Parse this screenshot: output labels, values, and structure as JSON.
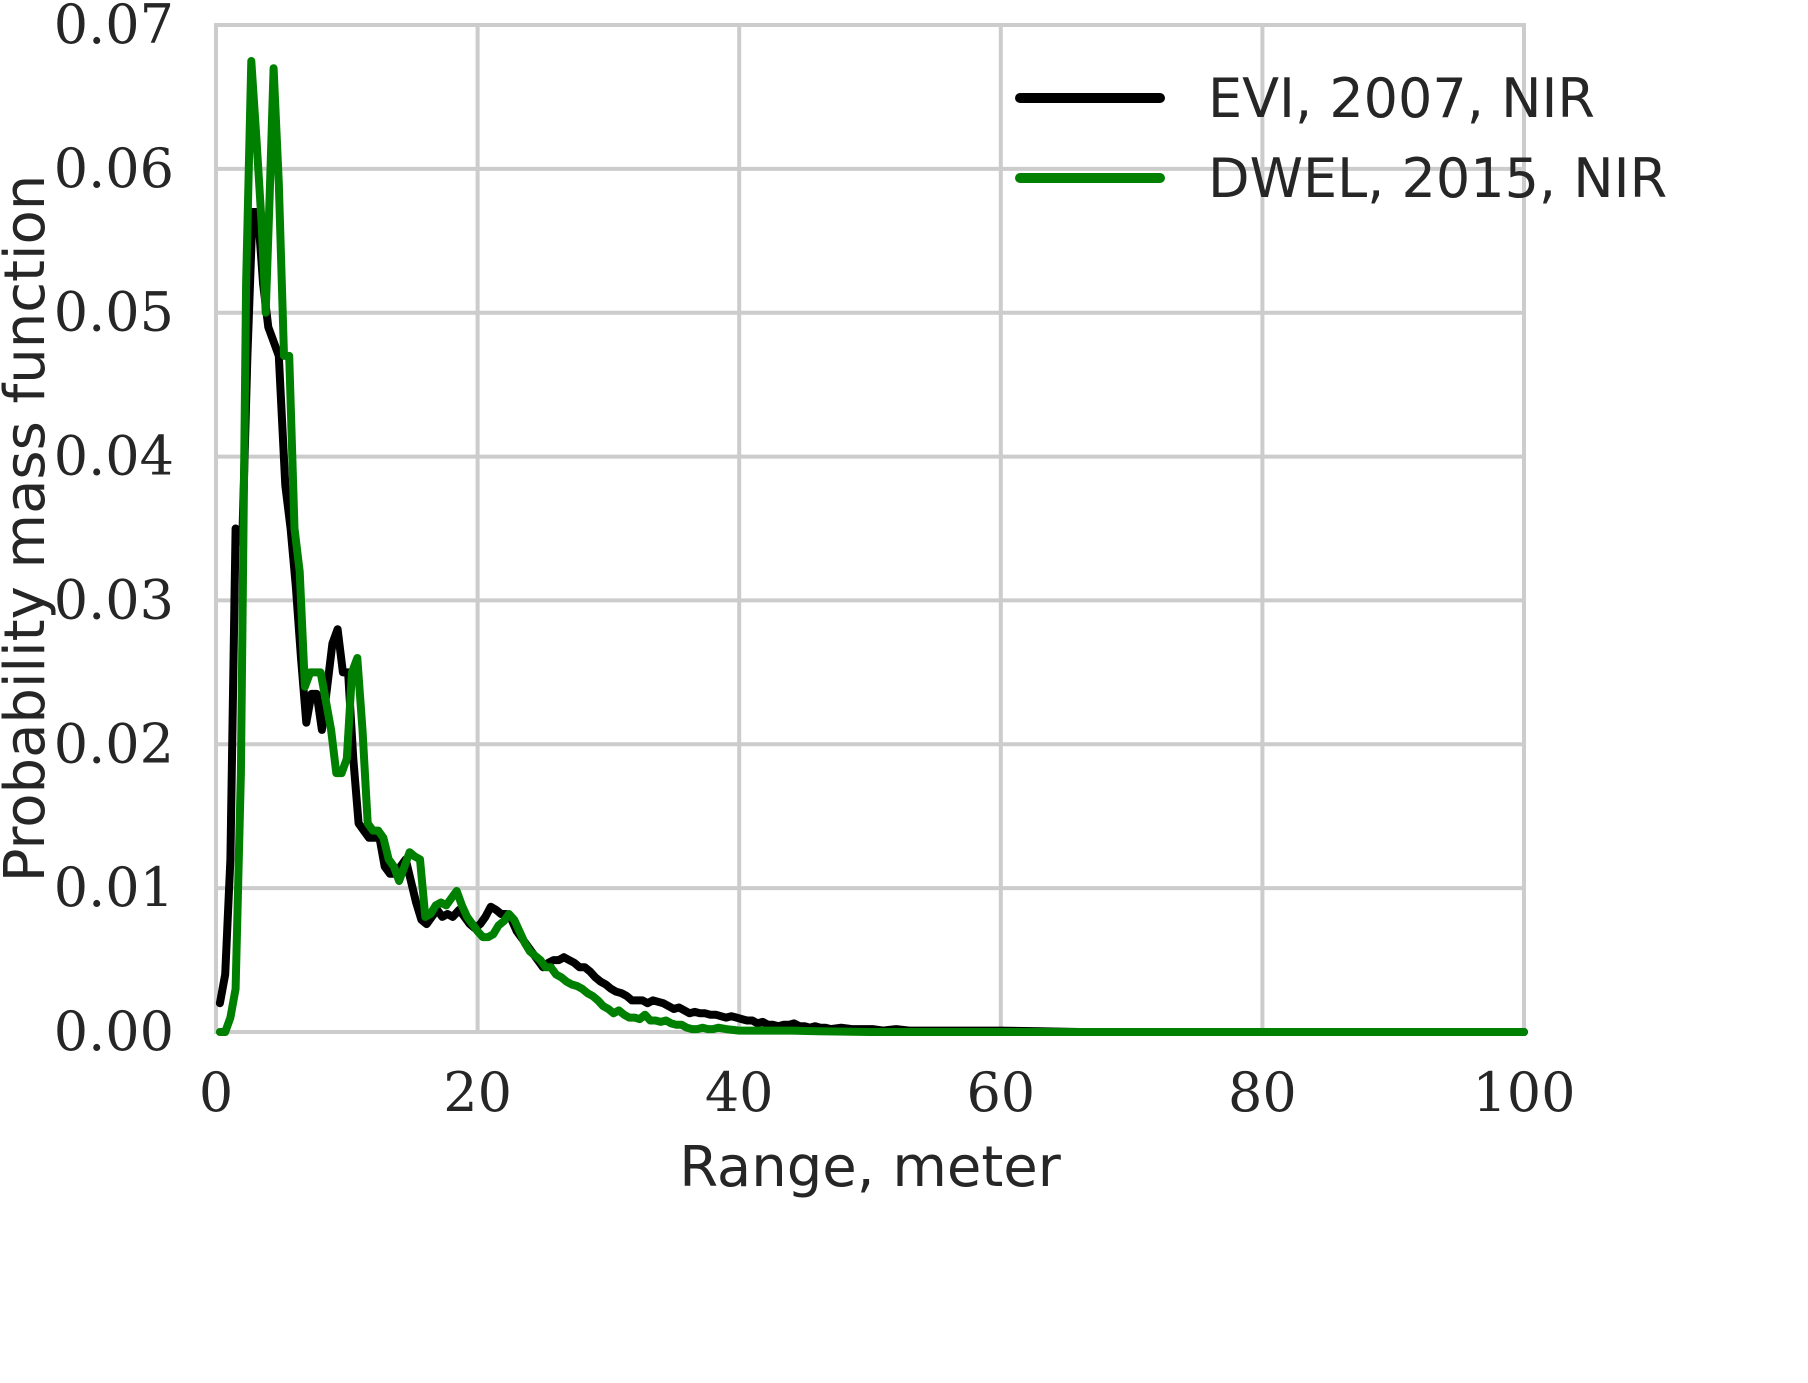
{
  "chart_data": {
    "type": "line",
    "title": "",
    "xlabel": "Range, meter",
    "ylabel": "Probability mass function",
    "xlim": [
      0,
      100
    ],
    "ylim": [
      0,
      0.07
    ],
    "x_ticks": [
      0,
      20,
      40,
      60,
      80,
      100
    ],
    "x_tick_labels": [
      "0",
      "20",
      "40",
      "60",
      "80",
      "100"
    ],
    "y_ticks": [
      0,
      0.01,
      0.02,
      0.03,
      0.04,
      0.05,
      0.06,
      0.07
    ],
    "y_tick_labels": [
      "0.00",
      "0.01",
      "0.02",
      "0.03",
      "0.04",
      "0.05",
      "0.06",
      "0.07"
    ],
    "grid": true,
    "legend_position": "top-right",
    "series": [
      {
        "name": "EVI, 2007, NIR",
        "color": "#000000",
        "points": [
          [
            0.3,
            0.002
          ],
          [
            0.7,
            0.004
          ],
          [
            1.1,
            0.012
          ],
          [
            1.5,
            0.035
          ],
          [
            2.0,
            0.034
          ],
          [
            2.4,
            0.047
          ],
          [
            2.8,
            0.057
          ],
          [
            3.2,
            0.057
          ],
          [
            3.6,
            0.052
          ],
          [
            4.0,
            0.049
          ],
          [
            4.4,
            0.048
          ],
          [
            4.8,
            0.047
          ],
          [
            5.3,
            0.038
          ],
          [
            5.7,
            0.035
          ],
          [
            6.1,
            0.031
          ],
          [
            6.5,
            0.026
          ],
          [
            6.9,
            0.0215
          ],
          [
            7.3,
            0.0235
          ],
          [
            7.7,
            0.0235
          ],
          [
            8.1,
            0.021
          ],
          [
            8.5,
            0.024
          ],
          [
            8.9,
            0.027
          ],
          [
            9.3,
            0.028
          ],
          [
            9.7,
            0.025
          ],
          [
            10.1,
            0.025
          ],
          [
            10.5,
            0.019
          ],
          [
            10.9,
            0.0145
          ],
          [
            11.3,
            0.014
          ],
          [
            11.7,
            0.0135
          ],
          [
            12.1,
            0.0135
          ],
          [
            12.5,
            0.0135
          ],
          [
            12.9,
            0.0115
          ],
          [
            13.3,
            0.011
          ],
          [
            13.7,
            0.011
          ],
          [
            14.1,
            0.0115
          ],
          [
            14.5,
            0.012
          ],
          [
            14.9,
            0.0105
          ],
          [
            15.3,
            0.009
          ],
          [
            15.7,
            0.0078
          ],
          [
            16.1,
            0.0075
          ],
          [
            16.5,
            0.008
          ],
          [
            16.9,
            0.0085
          ],
          [
            17.3,
            0.008
          ],
          [
            17.7,
            0.0082
          ],
          [
            18.1,
            0.008
          ],
          [
            18.6,
            0.0085
          ],
          [
            19.0,
            0.008
          ],
          [
            19.4,
            0.0075
          ],
          [
            19.8,
            0.0072
          ],
          [
            20.2,
            0.0075
          ],
          [
            20.6,
            0.008
          ],
          [
            21.0,
            0.0087
          ],
          [
            21.4,
            0.0085
          ],
          [
            21.8,
            0.0082
          ],
          [
            22.2,
            0.0082
          ],
          [
            22.6,
            0.0078
          ],
          [
            23.0,
            0.007
          ],
          [
            23.4,
            0.0065
          ],
          [
            23.8,
            0.006
          ],
          [
            24.2,
            0.0055
          ],
          [
            24.6,
            0.005
          ],
          [
            25.0,
            0.0045
          ],
          [
            25.4,
            0.0048
          ],
          [
            25.8,
            0.005
          ],
          [
            26.2,
            0.005
          ],
          [
            26.6,
            0.0052
          ],
          [
            27.0,
            0.005
          ],
          [
            27.4,
            0.0048
          ],
          [
            27.8,
            0.0045
          ],
          [
            28.2,
            0.0045
          ],
          [
            28.6,
            0.0042
          ],
          [
            29.0,
            0.0038
          ],
          [
            29.4,
            0.0035
          ],
          [
            29.8,
            0.0033
          ],
          [
            30.2,
            0.003
          ],
          [
            30.6,
            0.0028
          ],
          [
            31.0,
            0.0027
          ],
          [
            31.4,
            0.0025
          ],
          [
            31.8,
            0.0022
          ],
          [
            32.2,
            0.0022
          ],
          [
            32.6,
            0.0022
          ],
          [
            33.0,
            0.002
          ],
          [
            33.4,
            0.0022
          ],
          [
            33.8,
            0.0021
          ],
          [
            34.2,
            0.002
          ],
          [
            34.6,
            0.0018
          ],
          [
            35.0,
            0.0016
          ],
          [
            35.4,
            0.0017
          ],
          [
            35.8,
            0.0015
          ],
          [
            36.2,
            0.0013
          ],
          [
            36.6,
            0.0014
          ],
          [
            37.0,
            0.0013
          ],
          [
            37.4,
            0.0013
          ],
          [
            37.8,
            0.0012
          ],
          [
            38.2,
            0.0012
          ],
          [
            38.6,
            0.0011
          ],
          [
            39.0,
            0.001
          ],
          [
            39.4,
            0.0011
          ],
          [
            39.8,
            0.001
          ],
          [
            40.2,
            0.0009
          ],
          [
            40.6,
            0.0008
          ],
          [
            41.0,
            0.0008
          ],
          [
            41.4,
            0.0006
          ],
          [
            41.8,
            0.0007
          ],
          [
            42.2,
            0.0005
          ],
          [
            42.6,
            0.0005
          ],
          [
            43.0,
            0.0004
          ],
          [
            43.4,
            0.0005
          ],
          [
            43.8,
            0.0005
          ],
          [
            44.2,
            0.0006
          ],
          [
            44.6,
            0.0004
          ],
          [
            45.0,
            0.0004
          ],
          [
            45.4,
            0.0003
          ],
          [
            45.8,
            0.0004
          ],
          [
            46.2,
            0.0003
          ],
          [
            46.6,
            0.0003
          ],
          [
            47.0,
            0.0002
          ],
          [
            47.8,
            0.0003
          ],
          [
            48.6,
            0.0002
          ],
          [
            49.4,
            0.0002
          ],
          [
            50.2,
            0.0002
          ],
          [
            51.0,
            0.0001
          ],
          [
            52.0,
            0.0002
          ],
          [
            53.0,
            0.0001
          ],
          [
            54.0,
            0.0001
          ],
          [
            56.0,
            0.0001
          ],
          [
            58.0,
            0.0001
          ],
          [
            60.0,
            0.0001
          ],
          [
            63.0,
            5e-05
          ],
          [
            66.0,
            0.0
          ],
          [
            70.0,
            0.0
          ],
          [
            80.0,
            0.0
          ],
          [
            90.0,
            0.0
          ],
          [
            100.0,
            0.0
          ]
        ]
      },
      {
        "name": "DWEL, 2015, NIR",
        "color": "#008000",
        "points": [
          [
            0.3,
            0.0
          ],
          [
            0.7,
            0.0
          ],
          [
            1.1,
            0.001
          ],
          [
            1.5,
            0.003
          ],
          [
            1.9,
            0.018
          ],
          [
            2.3,
            0.052
          ],
          [
            2.7,
            0.0675
          ],
          [
            3.1,
            0.062
          ],
          [
            3.5,
            0.056
          ],
          [
            3.8,
            0.05
          ],
          [
            4.1,
            0.058
          ],
          [
            4.4,
            0.067
          ],
          [
            4.8,
            0.059
          ],
          [
            5.2,
            0.047
          ],
          [
            5.6,
            0.047
          ],
          [
            6.0,
            0.035
          ],
          [
            6.4,
            0.032
          ],
          [
            6.8,
            0.024
          ],
          [
            7.2,
            0.025
          ],
          [
            7.6,
            0.025
          ],
          [
            8.0,
            0.025
          ],
          [
            8.4,
            0.023
          ],
          [
            8.8,
            0.021
          ],
          [
            9.2,
            0.018
          ],
          [
            9.6,
            0.018
          ],
          [
            10.0,
            0.019
          ],
          [
            10.4,
            0.025
          ],
          [
            10.8,
            0.026
          ],
          [
            11.2,
            0.021
          ],
          [
            11.6,
            0.0145
          ],
          [
            12.0,
            0.014
          ],
          [
            12.4,
            0.014
          ],
          [
            12.8,
            0.0135
          ],
          [
            13.2,
            0.012
          ],
          [
            13.6,
            0.0115
          ],
          [
            14.0,
            0.0105
          ],
          [
            14.4,
            0.0115
          ],
          [
            14.8,
            0.0125
          ],
          [
            15.2,
            0.0122
          ],
          [
            15.6,
            0.012
          ],
          [
            16.0,
            0.008
          ],
          [
            16.4,
            0.0082
          ],
          [
            16.8,
            0.0088
          ],
          [
            17.2,
            0.009
          ],
          [
            17.6,
            0.0088
          ],
          [
            18.0,
            0.0093
          ],
          [
            18.4,
            0.0098
          ],
          [
            18.8,
            0.0088
          ],
          [
            19.2,
            0.008
          ],
          [
            19.6,
            0.0075
          ],
          [
            20.0,
            0.007
          ],
          [
            20.4,
            0.0066
          ],
          [
            20.8,
            0.0066
          ],
          [
            21.2,
            0.0068
          ],
          [
            21.6,
            0.0074
          ],
          [
            22.0,
            0.0077
          ],
          [
            22.4,
            0.0082
          ],
          [
            22.8,
            0.0078
          ],
          [
            23.2,
            0.007
          ],
          [
            23.6,
            0.0062
          ],
          [
            24.0,
            0.0056
          ],
          [
            24.4,
            0.0053
          ],
          [
            24.8,
            0.005
          ],
          [
            25.2,
            0.0045
          ],
          [
            25.6,
            0.0045
          ],
          [
            26.0,
            0.004
          ],
          [
            26.4,
            0.0038
          ],
          [
            26.8,
            0.0035
          ],
          [
            27.2,
            0.0033
          ],
          [
            27.6,
            0.0032
          ],
          [
            28.0,
            0.003
          ],
          [
            28.4,
            0.0027
          ],
          [
            28.8,
            0.0025
          ],
          [
            29.2,
            0.0022
          ],
          [
            29.6,
            0.0018
          ],
          [
            30.0,
            0.0016
          ],
          [
            30.4,
            0.0013
          ],
          [
            30.8,
            0.0015
          ],
          [
            31.2,
            0.0012
          ],
          [
            31.6,
            0.001
          ],
          [
            32.0,
            0.001
          ],
          [
            32.4,
            0.0009
          ],
          [
            32.8,
            0.0012
          ],
          [
            33.2,
            0.0008
          ],
          [
            33.6,
            0.0008
          ],
          [
            34.0,
            0.0007
          ],
          [
            34.4,
            0.0008
          ],
          [
            34.8,
            0.0006
          ],
          [
            35.2,
            0.0005
          ],
          [
            35.6,
            0.0005
          ],
          [
            36.0,
            0.0003
          ],
          [
            36.4,
            0.0002
          ],
          [
            36.8,
            0.0002
          ],
          [
            37.2,
            0.0003
          ],
          [
            37.6,
            0.0002
          ],
          [
            38.0,
            0.0002
          ],
          [
            38.4,
            0.0003
          ],
          [
            39.0,
            0.0002
          ],
          [
            40.0,
            0.0001
          ],
          [
            41.0,
            0.0001
          ],
          [
            42.0,
            0.0001
          ],
          [
            44.0,
            0.0001
          ],
          [
            46.0,
            5e-05
          ],
          [
            50.0,
            0.0
          ],
          [
            60.0,
            0.0
          ],
          [
            70.0,
            0.0
          ],
          [
            80.0,
            0.0
          ],
          [
            90.0,
            0.0
          ],
          [
            100.0,
            0.0
          ]
        ]
      }
    ]
  }
}
